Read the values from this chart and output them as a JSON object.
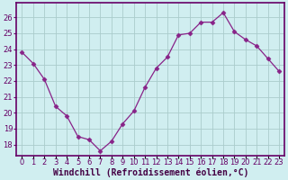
{
  "x": [
    0,
    1,
    2,
    3,
    4,
    5,
    6,
    7,
    8,
    9,
    10,
    11,
    12,
    13,
    14,
    15,
    16,
    17,
    18,
    19,
    20,
    21,
    22,
    23
  ],
  "y": [
    23.8,
    23.1,
    22.1,
    20.4,
    19.8,
    18.5,
    18.3,
    17.6,
    18.2,
    19.3,
    20.1,
    21.6,
    22.8,
    23.5,
    24.9,
    25.0,
    25.7,
    25.7,
    26.3,
    25.1,
    24.6,
    24.2,
    23.4,
    22.6
  ],
  "line_color": "#882288",
  "marker": "D",
  "marker_size": 2.5,
  "bg_color": "#d0eef0",
  "plot_bg_color": "#d0eef0",
  "grid_color": "#aacccc",
  "spine_color": "#660066",
  "ylabel_ticks": [
    18,
    19,
    20,
    21,
    22,
    23,
    24,
    25,
    26
  ],
  "ylim": [
    17.3,
    26.9
  ],
  "xlim": [
    -0.5,
    23.5
  ],
  "xlabel": "Windchill (Refroidissement éolien,°C)",
  "xlabel_fontsize": 7.0,
  "tick_fontsize": 6.0,
  "tick_color": "#660066",
  "label_color": "#440044"
}
